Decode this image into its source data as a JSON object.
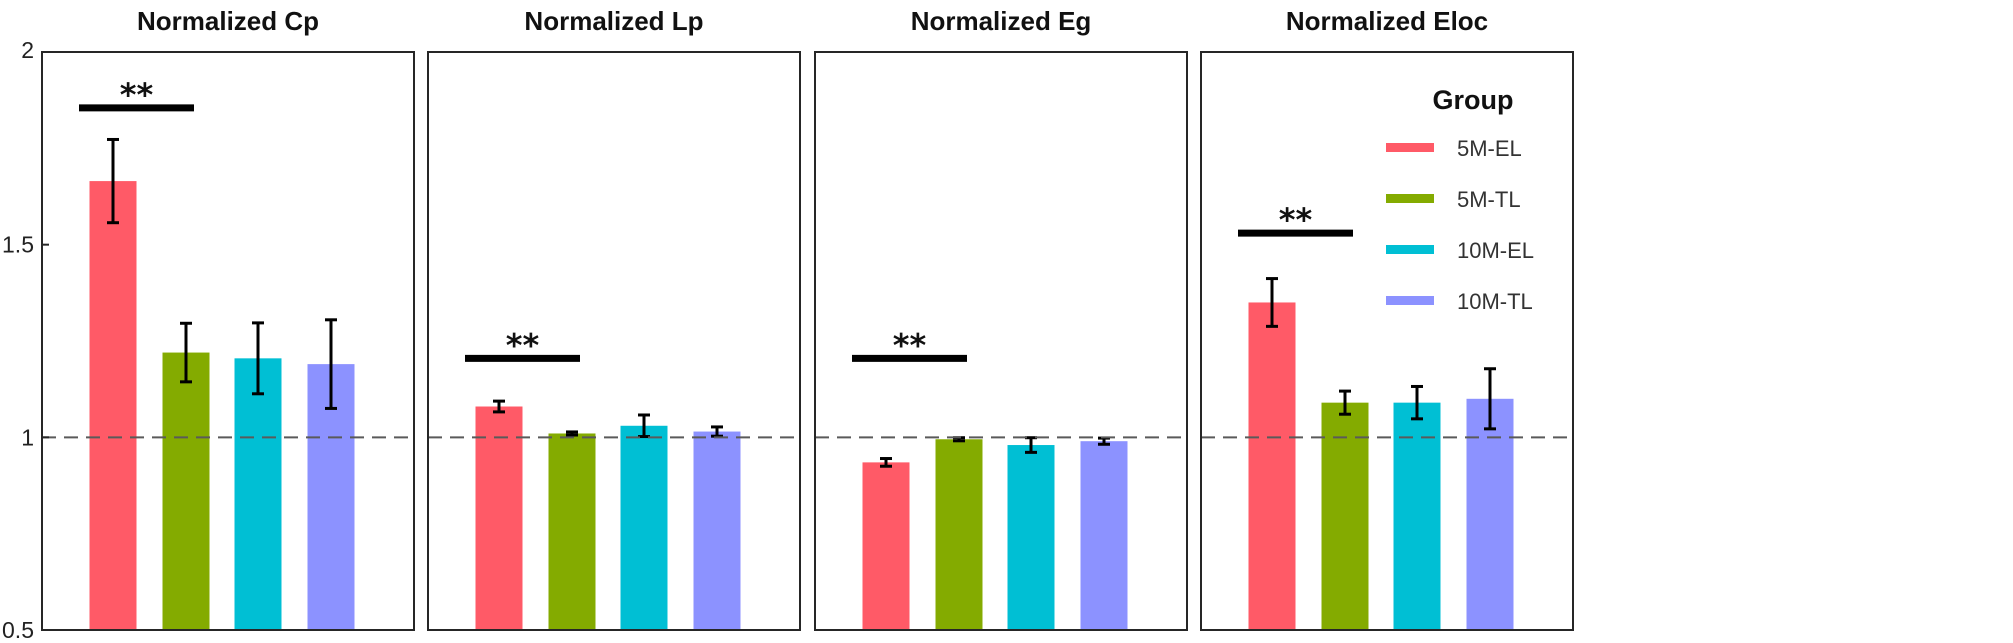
{
  "chart_data": {
    "type": "bar",
    "ylim": [
      0.5,
      2
    ],
    "yticks": [
      0.5,
      1,
      1.5,
      2
    ],
    "ytick_labels": [
      "0.5",
      "1",
      "1.5",
      "2"
    ],
    "reference_line": 1,
    "grid": false,
    "legend": {
      "title": "Group",
      "placement": "top-right",
      "entries": [
        "5M-EL",
        "5M-TL",
        "10M-EL",
        "10M-TL"
      ]
    },
    "colors": {
      "5M-EL": "#ff5a67",
      "5M-TL": "#84ab00",
      "10M-EL": "#00bfd4",
      "10M-TL": "#8c92ff"
    },
    "groups": [
      "5M-EL",
      "5M-TL",
      "10M-EL",
      "10M-TL"
    ],
    "panels": [
      {
        "title": "Normalized Cp",
        "values": [
          1.665,
          1.22,
          1.205,
          1.19
        ],
        "errors": [
          0.108,
          0.076,
          0.092,
          0.115
        ],
        "significance": {
          "label": "**",
          "between": [
            0,
            1
          ],
          "y": 1.855
        }
      },
      {
        "title": "Normalized Lp",
        "values": [
          1.08,
          1.01,
          1.03,
          1.015
        ],
        "errors": [
          0.014,
          0.004,
          0.028,
          0.012
        ],
        "significance": {
          "label": "**",
          "between": [
            0,
            1
          ],
          "y": 1.205
        }
      },
      {
        "title": "Normalized Eg",
        "values": [
          0.935,
          0.995,
          0.98,
          0.99
        ],
        "errors": [
          0.01,
          0.004,
          0.019,
          0.008
        ],
        "significance": {
          "label": "**",
          "between": [
            0,
            1
          ],
          "y": 1.205
        }
      },
      {
        "title": "Normalized Eloc",
        "values": [
          1.35,
          1.09,
          1.09,
          1.1
        ],
        "errors": [
          0.062,
          0.03,
          0.042,
          0.078
        ],
        "significance": {
          "label": "**",
          "between": [
            0,
            1
          ],
          "y": 1.53
        }
      }
    ]
  }
}
